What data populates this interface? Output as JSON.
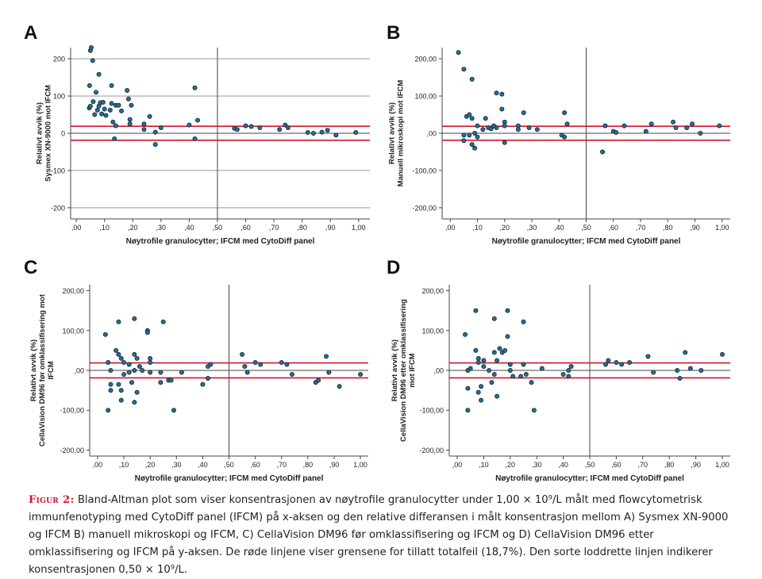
{
  "colors": {
    "dot": "#2b6c8e",
    "dot_edge": "#0f2a3a",
    "limit": "#d2142e",
    "grid": "#8a8a8a",
    "axis": "#444444",
    "text": "#222222"
  },
  "chart_data": [
    {
      "type": "scatter",
      "panel": "A",
      "xlabel": "Nøytrofile granulocytter; IFCM  med CytoDiff panel",
      "ylabel": [
        "Relativt avvik (%)",
        "Sysmex XN-9000 mot IFCM"
      ],
      "xlim": [
        -0.02,
        1.04
      ],
      "ylim": [
        -230,
        230
      ],
      "yticks": [
        200,
        100,
        0,
        -100,
        -200
      ],
      "ytick_labels": [
        "200",
        "100",
        "0",
        "-100",
        "-200"
      ],
      "ygrid": [
        200,
        100,
        -100,
        -200
      ],
      "xticks": [
        0,
        0.1,
        0.2,
        0.3,
        0.4,
        0.5,
        0.6,
        0.7,
        0.8,
        0.9,
        1.0
      ],
      "xtick_labels": [
        ",00",
        ",10",
        ",20",
        ",30",
        ",40",
        ",50",
        ",60",
        ",70",
        ",80",
        ",90",
        "1,00"
      ],
      "zero_line": 0,
      "vline": 0.5,
      "limits": [
        18.7,
        -18.7
      ],
      "points": [
        [
          0.05,
          222
        ],
        [
          0.053,
          230
        ],
        [
          0.058,
          195
        ],
        [
          0.047,
          128
        ],
        [
          0.046,
          68
        ],
        [
          0.05,
          73
        ],
        [
          0.07,
          110
        ],
        [
          0.08,
          158
        ],
        [
          0.085,
          82
        ],
        [
          0.08,
          73
        ],
        [
          0.095,
          83
        ],
        [
          0.1,
          65
        ],
        [
          0.06,
          85
        ],
        [
          0.065,
          50
        ],
        [
          0.075,
          62
        ],
        [
          0.09,
          52
        ],
        [
          0.105,
          48
        ],
        [
          0.125,
          128
        ],
        [
          0.125,
          80
        ],
        [
          0.12,
          62
        ],
        [
          0.14,
          75
        ],
        [
          0.15,
          75
        ],
        [
          0.16,
          60
        ],
        [
          0.13,
          30
        ],
        [
          0.14,
          20
        ],
        [
          0.135,
          -15
        ],
        [
          0.18,
          115
        ],
        [
          0.185,
          92
        ],
        [
          0.195,
          75
        ],
        [
          0.19,
          37
        ],
        [
          0.19,
          25
        ],
        [
          0.24,
          25
        ],
        [
          0.24,
          10
        ],
        [
          0.26,
          45
        ],
        [
          0.28,
          3
        ],
        [
          0.28,
          -30
        ],
        [
          0.3,
          15
        ],
        [
          0.4,
          22
        ],
        [
          0.42,
          122
        ],
        [
          0.42,
          -15
        ],
        [
          0.43,
          35
        ],
        [
          0.56,
          13
        ],
        [
          0.57,
          10
        ],
        [
          0.6,
          20
        ],
        [
          0.62,
          18
        ],
        [
          0.65,
          15
        ],
        [
          0.72,
          10
        ],
        [
          0.74,
          22
        ],
        [
          0.75,
          15
        ],
        [
          0.82,
          2
        ],
        [
          0.84,
          0
        ],
        [
          0.87,
          3
        ],
        [
          0.89,
          8
        ],
        [
          0.92,
          -5
        ],
        [
          0.99,
          2
        ]
      ]
    },
    {
      "type": "scatter",
      "panel": "B",
      "xlabel": "Nøytrofile granulocytter; IFCM  med CytoDiff panel",
      "ylabel": [
        "Relativt avvik (%)",
        "Manuell mikroskopi mot IFCM"
      ],
      "xlim": [
        -0.03,
        1.03
      ],
      "ylim": [
        -230,
        230
      ],
      "yticks": [
        200,
        100,
        0,
        -100,
        -200
      ],
      "ytick_labels": [
        "200,00",
        "100,00",
        ",00",
        "-100,00",
        "-200,00"
      ],
      "ygrid": [],
      "xticks": [
        0,
        0.1,
        0.2,
        0.3,
        0.4,
        0.5,
        0.6,
        0.7,
        0.8,
        0.9,
        1.0
      ],
      "xtick_labels": [
        ",00",
        ",10",
        ",20",
        ",30",
        ",40",
        ",50",
        ",60",
        ",70",
        ",80",
        ",90",
        "1,00"
      ],
      "zero_line": 0,
      "vline": 0.5,
      "limits": [
        18.7,
        -18.7
      ],
      "points": [
        [
          0.03,
          217
        ],
        [
          0.05,
          172
        ],
        [
          0.08,
          145
        ],
        [
          0.06,
          45
        ],
        [
          0.07,
          50
        ],
        [
          0.08,
          40
        ],
        [
          0.07,
          -5
        ],
        [
          0.09,
          0
        ],
        [
          0.05,
          -5
        ],
        [
          0.05,
          -20
        ],
        [
          0.08,
          -30
        ],
        [
          0.09,
          -40
        ],
        [
          0.1,
          -10
        ],
        [
          0.1,
          20
        ],
        [
          0.12,
          10
        ],
        [
          0.13,
          40
        ],
        [
          0.14,
          15
        ],
        [
          0.15,
          12
        ],
        [
          0.16,
          20
        ],
        [
          0.17,
          108
        ],
        [
          0.17,
          15
        ],
        [
          0.19,
          105
        ],
        [
          0.19,
          65
        ],
        [
          0.2,
          30
        ],
        [
          0.2,
          20
        ],
        [
          0.2,
          -25
        ],
        [
          0.25,
          20
        ],
        [
          0.25,
          10
        ],
        [
          0.27,
          55
        ],
        [
          0.29,
          15
        ],
        [
          0.32,
          10
        ],
        [
          0.42,
          55
        ],
        [
          0.43,
          25
        ],
        [
          0.41,
          -5
        ],
        [
          0.42,
          -10
        ],
        [
          0.56,
          -50
        ],
        [
          0.57,
          20
        ],
        [
          0.6,
          5
        ],
        [
          0.61,
          2
        ],
        [
          0.64,
          20
        ],
        [
          0.72,
          5
        ],
        [
          0.74,
          25
        ],
        [
          0.82,
          30
        ],
        [
          0.83,
          15
        ],
        [
          0.87,
          15
        ],
        [
          0.89,
          25
        ],
        [
          0.92,
          0
        ],
        [
          0.99,
          20
        ]
      ]
    },
    {
      "type": "scatter",
      "panel": "C",
      "xlabel": "Nøytrofile granulocytter; IFCM  med CytoDiff panel",
      "ylabel": [
        "Relativt avvik (%)",
        "CellaVision DM96 før omklassifisering mot",
        "IFCM"
      ],
      "xlim": [
        -0.03,
        1.03
      ],
      "ylim": [
        -215,
        215
      ],
      "yticks": [
        200,
        100,
        0,
        -100,
        -200
      ],
      "ytick_labels": [
        "200,00",
        "100,00",
        ",00",
        "-100,00",
        "-200,00"
      ],
      "ygrid": [],
      "xticks": [
        0,
        0.1,
        0.2,
        0.3,
        0.4,
        0.5,
        0.6,
        0.7,
        0.8,
        0.9,
        1.0
      ],
      "xtick_labels": [
        ",00",
        ",10",
        ",20",
        ",30",
        ",40",
        ",50",
        ",60",
        ",70",
        ",80",
        ",90",
        "1,00"
      ],
      "zero_line": 0,
      "vline": 0.5,
      "limits": [
        18.7,
        -18.7
      ],
      "points": [
        [
          0.03,
          90
        ],
        [
          0.04,
          20
        ],
        [
          0.05,
          0
        ],
        [
          0.05,
          -35
        ],
        [
          0.05,
          -50
        ],
        [
          0.04,
          -100
        ],
        [
          0.07,
          50
        ],
        [
          0.08,
          122
        ],
        [
          0.08,
          40
        ],
        [
          0.09,
          30
        ],
        [
          0.08,
          -35
        ],
        [
          0.09,
          -50
        ],
        [
          0.1,
          20
        ],
        [
          0.1,
          -10
        ],
        [
          0.09,
          -75
        ],
        [
          0.12,
          15
        ],
        [
          0.12,
          -5
        ],
        [
          0.14,
          130
        ],
        [
          0.14,
          40
        ],
        [
          0.15,
          30
        ],
        [
          0.14,
          0
        ],
        [
          0.13,
          -30
        ],
        [
          0.15,
          -55
        ],
        [
          0.16,
          10
        ],
        [
          0.17,
          0
        ],
        [
          0.14,
          -80
        ],
        [
          0.19,
          100
        ],
        [
          0.19,
          95
        ],
        [
          0.2,
          30
        ],
        [
          0.2,
          20
        ],
        [
          0.2,
          -5
        ],
        [
          0.25,
          122
        ],
        [
          0.24,
          -5
        ],
        [
          0.24,
          -30
        ],
        [
          0.27,
          -25
        ],
        [
          0.28,
          -25
        ],
        [
          0.29,
          -100
        ],
        [
          0.32,
          -5
        ],
        [
          0.4,
          -35
        ],
        [
          0.42,
          10
        ],
        [
          0.43,
          15
        ],
        [
          0.42,
          -20
        ],
        [
          0.55,
          40
        ],
        [
          0.56,
          10
        ],
        [
          0.57,
          -5
        ],
        [
          0.6,
          20
        ],
        [
          0.62,
          15
        ],
        [
          0.7,
          20
        ],
        [
          0.72,
          15
        ],
        [
          0.74,
          -10
        ],
        [
          0.83,
          -30
        ],
        [
          0.84,
          -25
        ],
        [
          0.87,
          35
        ],
        [
          0.88,
          -5
        ],
        [
          0.92,
          -40
        ],
        [
          1.0,
          -10
        ]
      ]
    },
    {
      "type": "scatter",
      "panel": "D",
      "xlabel": "Nøytrofile granulocytter; IFCM  med CytoDiff panel",
      "ylabel": [
        "Relativt avvik (%)",
        "CellaVision DM96 etter omklassifisering",
        "mot IFCM"
      ],
      "xlim": [
        -0.03,
        1.03
      ],
      "ylim": [
        -215,
        215
      ],
      "yticks": [
        200,
        100,
        0,
        -100,
        -200
      ],
      "ytick_labels": [
        "200,00",
        "100,00",
        ",00",
        "-100,00",
        "-200,00"
      ],
      "ygrid": [],
      "xticks": [
        0,
        0.1,
        0.2,
        0.3,
        0.4,
        0.5,
        0.6,
        0.7,
        0.8,
        0.9,
        1.0
      ],
      "xtick_labels": [
        ",00",
        ",10",
        ",20",
        ",30",
        ",40",
        ",50",
        ",60",
        ",70",
        ",80",
        ",90",
        "1,00"
      ],
      "zero_line": 0,
      "vline": 0.5,
      "limits": [
        18.7,
        -18.7
      ],
      "points": [
        [
          0.03,
          90
        ],
        [
          0.04,
          0
        ],
        [
          0.05,
          5
        ],
        [
          0.04,
          -45
        ],
        [
          0.04,
          -100
        ],
        [
          0.07,
          150
        ],
        [
          0.07,
          50
        ],
        [
          0.08,
          30
        ],
        [
          0.08,
          20
        ],
        [
          0.09,
          -40
        ],
        [
          0.08,
          -55
        ],
        [
          0.09,
          -75
        ],
        [
          0.1,
          25
        ],
        [
          0.1,
          10
        ],
        [
          0.12,
          0
        ],
        [
          0.14,
          130
        ],
        [
          0.14,
          45
        ],
        [
          0.15,
          25
        ],
        [
          0.14,
          -10
        ],
        [
          0.13,
          -30
        ],
        [
          0.15,
          -65
        ],
        [
          0.16,
          55
        ],
        [
          0.17,
          45
        ],
        [
          0.18,
          50
        ],
        [
          0.19,
          150
        ],
        [
          0.19,
          85
        ],
        [
          0.2,
          15
        ],
        [
          0.2,
          0
        ],
        [
          0.21,
          -15
        ],
        [
          0.25,
          122
        ],
        [
          0.25,
          15
        ],
        [
          0.24,
          -15
        ],
        [
          0.26,
          -10
        ],
        [
          0.28,
          -30
        ],
        [
          0.29,
          -100
        ],
        [
          0.32,
          5
        ],
        [
          0.4,
          -10
        ],
        [
          0.42,
          0
        ],
        [
          0.43,
          10
        ],
        [
          0.42,
          -15
        ],
        [
          0.56,
          15
        ],
        [
          0.57,
          25
        ],
        [
          0.6,
          20
        ],
        [
          0.62,
          15
        ],
        [
          0.65,
          20
        ],
        [
          0.72,
          35
        ],
        [
          0.74,
          -5
        ],
        [
          0.83,
          0
        ],
        [
          0.84,
          -20
        ],
        [
          0.86,
          45
        ],
        [
          0.88,
          5
        ],
        [
          0.92,
          0
        ],
        [
          1.0,
          40
        ]
      ]
    }
  ],
  "caption": {
    "label": "Figur 2:",
    "text": " Bland-Altman plot som viser konsentrasjonen av nøytrofile granulocytter under 1,00 × 10⁹/L målt med flowcytometrisk immunfenotyping med CytoDiff panel (IFCM) på x-aksen og den relative differansen i målt konsentrasjon mellom A) Sysmex XN-9000 og IFCM B) manuell mikroskopi og IFCM, C) CellaVision DM96 før omklassifisering og IFCM og D) CellaVision DM96 etter omklassifisering og IFCM på y-aksen. De røde linjene viser grensene for tillatt totalfeil (18,7%). Den sorte loddrette linjen indikerer konsentrasjonen 0,50 × 10⁹/L."
  }
}
